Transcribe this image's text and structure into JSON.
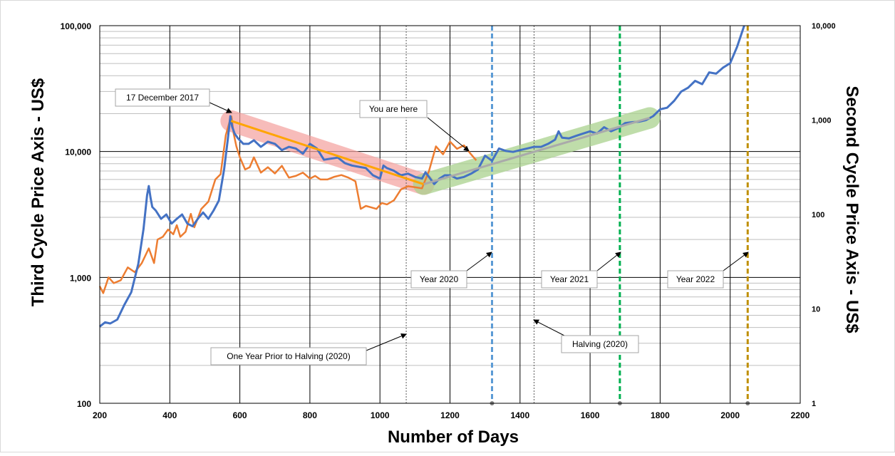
{
  "chart_data": {
    "type": "line",
    "xlabel": "Number of Days",
    "ylabel_left": "Third Cycle Price Axis - US$",
    "ylabel_right": "Second Cycle Price Axis - US$",
    "x_range": [
      200,
      2200
    ],
    "x_ticks": [
      "200",
      "400",
      "600",
      "800",
      "1000",
      "1200",
      "1400",
      "1600",
      "1800",
      "2000",
      "2200"
    ],
    "left_y_range": [
      100,
      100000
    ],
    "left_y_scale": "log",
    "left_y_ticks": [
      {
        "value": 100,
        "label": "100"
      },
      {
        "value": 1000,
        "label": "1,000"
      },
      {
        "value": 10000,
        "label": "10,000"
      },
      {
        "value": 100000,
        "label": "100,000"
      }
    ],
    "right_y_range": [
      1,
      10000
    ],
    "right_y_scale": "log",
    "right_y_ticks": [
      {
        "value": 1,
        "label": "1"
      },
      {
        "value": 10,
        "label": "10"
      },
      {
        "value": 100,
        "label": "100"
      },
      {
        "value": 1000,
        "label": "1,000"
      },
      {
        "value": 10000,
        "label": "10,000"
      }
    ],
    "grid": true,
    "series": [
      {
        "name": "Second Cycle",
        "axis": "right",
        "color": "#4472c4",
        "x": [
          200,
          215,
          230,
          250,
          270,
          290,
          310,
          325,
          335,
          340,
          345,
          350,
          360,
          375,
          390,
          405,
          420,
          435,
          450,
          465,
          480,
          495,
          510,
          525,
          540,
          555,
          565,
          573,
          578,
          585,
          595,
          610,
          625,
          640,
          660,
          680,
          700,
          720,
          740,
          760,
          780,
          800,
          820,
          840,
          860,
          880,
          900,
          920,
          940,
          960,
          980,
          1000,
          1010,
          1020,
          1040,
          1060,
          1080,
          1100,
          1120,
          1130,
          1140,
          1155,
          1170,
          1185,
          1200,
          1220,
          1240,
          1260,
          1280,
          1300,
          1320,
          1340,
          1360,
          1380,
          1400,
          1420,
          1440,
          1460,
          1480,
          1500,
          1510,
          1520,
          1540,
          1560,
          1580,
          1600,
          1620,
          1640,
          1660,
          1680,
          1700,
          1720,
          1740,
          1760,
          1780,
          1800,
          1820,
          1840,
          1860,
          1880,
          1900,
          1920,
          1940,
          1960,
          1980,
          2000,
          2020,
          2040
        ],
        "values": [
          6.5,
          7.2,
          7,
          7.7,
          11,
          15,
          30,
          70,
          160,
          200,
          150,
          120,
          110,
          90,
          100,
          80,
          90,
          100,
          80,
          75,
          90,
          105,
          90,
          110,
          140,
          300,
          600,
          1100,
          850,
          720,
          640,
          560,
          560,
          610,
          520,
          590,
          560,
          480,
          520,
          500,
          440,
          560,
          500,
          380,
          390,
          400,
          350,
          330,
          320,
          310,
          260,
          240,
          330,
          310,
          290,
          260,
          270,
          250,
          240,
          280,
          250,
          210,
          240,
          260,
          260,
          240,
          250,
          270,
          300,
          420,
          370,
          500,
          470,
          460,
          480,
          500,
          520,
          520,
          560,
          620,
          760,
          650,
          640,
          680,
          720,
          760,
          720,
          840,
          760,
          820,
          930,
          950,
          960,
          1000,
          1100,
          1300,
          1350,
          1600,
          2000,
          2200,
          2600,
          2400,
          3200,
          3100,
          3600,
          4000,
          6000,
          10000
        ]
      },
      {
        "name": "Third Cycle",
        "axis": "left",
        "color": "#ed7d31",
        "x": [
          200,
          210,
          225,
          240,
          260,
          280,
          300,
          320,
          340,
          355,
          365,
          380,
          395,
          410,
          420,
          430,
          445,
          460,
          470,
          490,
          510,
          530,
          545,
          560,
          570,
          576,
          582,
          590,
          600,
          615,
          628,
          640,
          660,
          680,
          700,
          720,
          740,
          760,
          780,
          800,
          815,
          830,
          850,
          870,
          890,
          910,
          930,
          945,
          960,
          975,
          990,
          1005,
          1020,
          1040,
          1060,
          1080,
          1100,
          1120,
          1140,
          1160,
          1180,
          1200,
          1220,
          1240,
          1260,
          1275
        ],
        "values": [
          850,
          750,
          1000,
          900,
          950,
          1200,
          1100,
          1300,
          1700,
          1300,
          2000,
          2100,
          2400,
          2200,
          2600,
          2100,
          2300,
          3200,
          2500,
          3500,
          4000,
          6000,
          6600,
          13500,
          17000,
          19000,
          14000,
          11000,
          9000,
          7200,
          7500,
          9000,
          6800,
          7500,
          6700,
          7700,
          6200,
          6400,
          6800,
          6100,
          6400,
          6000,
          6000,
          6300,
          6500,
          6200,
          5800,
          3500,
          3700,
          3600,
          3500,
          3900,
          3800,
          4100,
          5000,
          5300,
          5200,
          5100,
          7000,
          11000,
          9500,
          12000,
          10500,
          11200,
          9500,
          8500
        ]
      }
    ],
    "trend_lines": [
      {
        "name": "Downtrend (third cycle)",
        "color": "#ffa500",
        "x": [
          575,
          1125
        ],
        "values": [
          17500,
          5500
        ]
      },
      {
        "name": "Uptrend (second cycle)",
        "color": "#aaaaaa",
        "x": [
          1125,
          1770
        ],
        "values": [
          5500,
          18500
        ]
      }
    ],
    "vertical_lines": [
      {
        "x": 1075,
        "label": "One Year Prior to Halving (2020)",
        "style": "dotted",
        "color": "#595959"
      },
      {
        "x": 1320,
        "label": "Year 2020",
        "style": "dashed",
        "color": "#5b9bd5"
      },
      {
        "x": 1440,
        "label": "Halving (2020)",
        "style": "dotted",
        "color": "#595959"
      },
      {
        "x": 1685,
        "label": "Year 2021",
        "style": "dashed",
        "color": "#00b050"
      },
      {
        "x": 2050,
        "label": "Year 2022",
        "style": "dashed",
        "color": "#bf8f00"
      }
    ],
    "annotations": [
      {
        "label": "17 December 2017"
      },
      {
        "label": "You are here"
      }
    ]
  }
}
